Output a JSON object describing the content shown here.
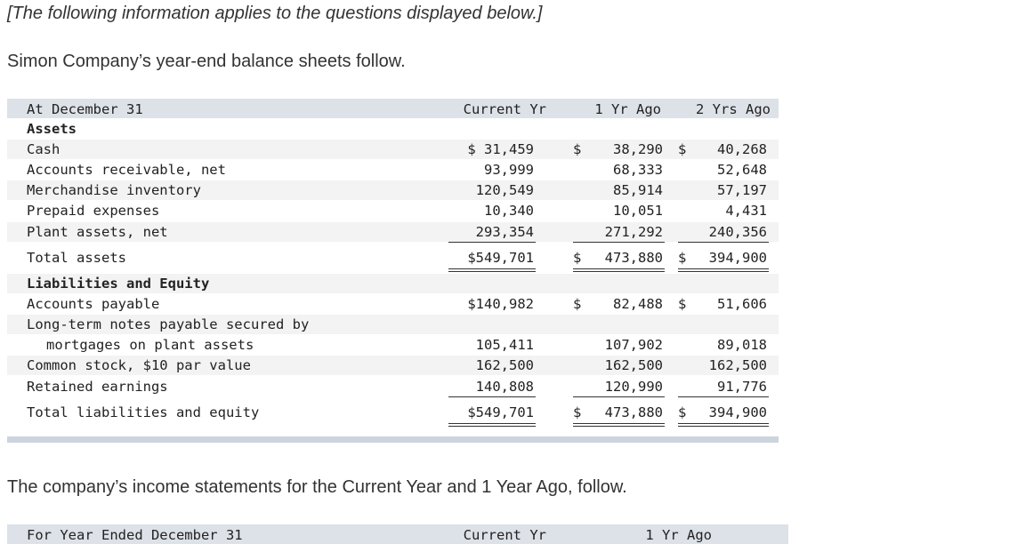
{
  "intro": "[The following information applies to the questions displayed below.]",
  "lead": "Simon Company’s year-end balance sheets follow.",
  "table": {
    "header": [
      "At December 31",
      "Current Yr",
      "1 Yr Ago",
      "2 Yrs Ago"
    ],
    "rows": [
      {
        "label": "Assets",
        "cells": []
      },
      {
        "label": "Cash",
        "cells": [
          "$ 31,459",
          {
            "sign": "$",
            "amount": "38,290"
          },
          {
            "sign": "$",
            "amount": "40,268"
          }
        ]
      },
      {
        "label": "Accounts receivable, net",
        "cells": [
          "93,999",
          "68,333",
          "52,648"
        ]
      },
      {
        "label": "Merchandise inventory",
        "cells": [
          "120,549",
          "85,914",
          "57,197"
        ]
      },
      {
        "label": "Prepaid expenses",
        "cells": [
          "10,340",
          "10,051",
          "4,431"
        ]
      },
      {
        "label": "Plant assets, net",
        "cells": [
          "293,354",
          "271,292",
          "240,356"
        ]
      },
      {
        "label": "Total assets",
        "cells": [
          "$549,701",
          {
            "sign": "$",
            "amount": "473,880"
          },
          {
            "sign": "$",
            "amount": "394,900"
          }
        ]
      },
      {
        "label": "Liabilities and Equity",
        "cells": []
      },
      {
        "label": "Accounts payable",
        "cells": [
          "$140,982",
          {
            "sign": "$",
            "amount": "82,488"
          },
          {
            "sign": "$",
            "amount": "51,606"
          }
        ]
      },
      {
        "label": "Long-term notes payable secured by",
        "cells": []
      },
      {
        "label": "mortgages on plant assets",
        "cells": [
          "105,411",
          "107,902",
          "89,018"
        ]
      },
      {
        "label": "Common stock, $10 par value",
        "cells": [
          "162,500",
          "162,500",
          "162,500"
        ]
      },
      {
        "label": "Retained earnings",
        "cells": [
          "140,808",
          "120,990",
          "91,776"
        ]
      },
      {
        "label": "Total liabilities and equity",
        "cells": [
          "$549,701",
          {
            "sign": "$",
            "amount": "473,880"
          },
          {
            "sign": "$",
            "amount": "394,900"
          }
        ]
      }
    ]
  },
  "follow": "The company’s income statements for the Current Year and 1 Year Ago, follow.",
  "next_header": [
    "For Year Ended December 31",
    "Current Yr",
    "1 Yr Ago"
  ]
}
